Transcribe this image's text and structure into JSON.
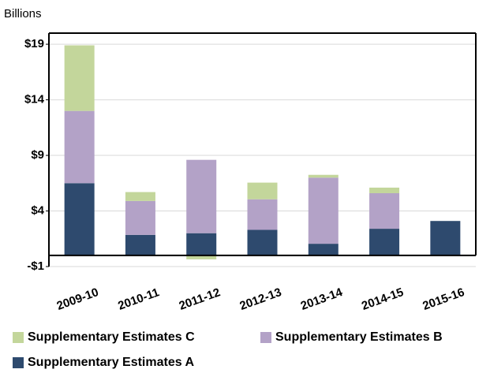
{
  "chart_data": {
    "type": "stacked_bar",
    "y_label": "Billions",
    "categories": [
      "2009-10",
      "2010-11",
      "2011-12",
      "2012-13",
      "2013-14",
      "2014-15",
      "2015-16"
    ],
    "series": [
      {
        "name": "Supplementary Estimates A",
        "color": "#2e4a6e",
        "values": [
          6.5,
          1.85,
          2.0,
          2.3,
          1.05,
          2.4,
          3.1
        ]
      },
      {
        "name": "Supplementary Estimates B",
        "color": "#b3a2c7",
        "values": [
          6.5,
          3.05,
          6.6,
          2.75,
          5.95,
          3.2,
          0
        ]
      },
      {
        "name": "Supplementary Estimates C",
        "color": "#c3d69b",
        "values": [
          5.9,
          0.8,
          -0.35,
          1.5,
          0.25,
          0.5,
          0
        ]
      }
    ],
    "ylim": [
      -1,
      20
    ],
    "yticks": [
      {
        "value": -1,
        "label": "-$1"
      },
      {
        "value": 4,
        "label": "$4"
      },
      {
        "value": 9,
        "label": "$9"
      },
      {
        "value": 14,
        "label": "$14"
      },
      {
        "value": 19,
        "label": "$19"
      }
    ],
    "grid": true
  }
}
